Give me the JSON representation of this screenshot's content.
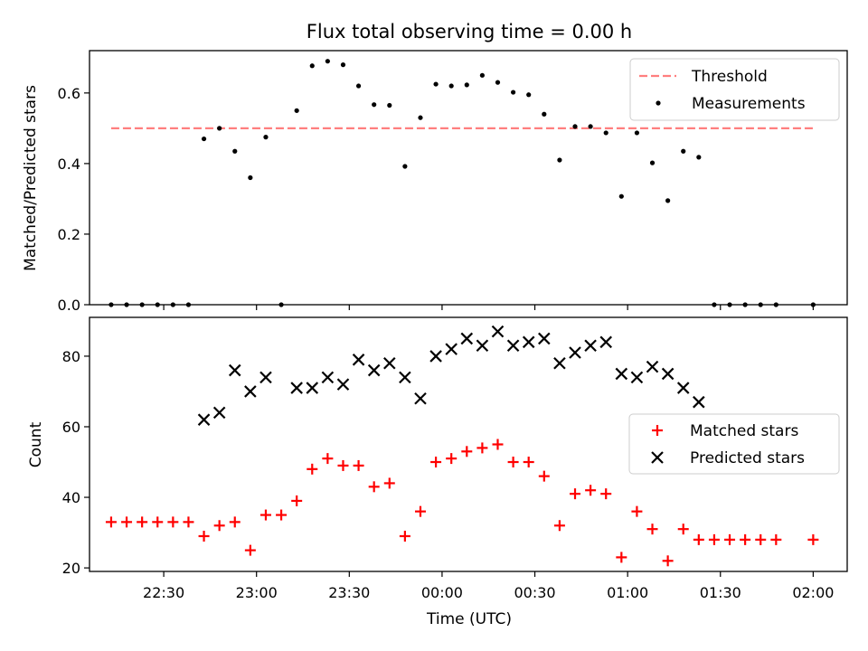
{
  "chart_data": [
    {
      "type": "scatter",
      "title": "Flux total observing time = 0.00 h",
      "xlabel": "",
      "ylabel": "Matched/Predicted stars",
      "ylim": [
        0,
        0.72
      ],
      "xlim": [
        "22:06",
        "02:11"
      ],
      "yticks": [
        "0.0",
        "0.2",
        "0.4",
        "0.6"
      ],
      "legend_position": "upper right",
      "threshold": {
        "name": "Threshold",
        "value": 0.5,
        "x_range": [
          "22:13",
          "02:00"
        ],
        "color": "#ff7f7f",
        "style": "dashed"
      },
      "series": [
        {
          "name": "Measurements",
          "marker": "dot",
          "color": "#000000",
          "x": [
            "22:13",
            "22:18",
            "22:23",
            "22:28",
            "22:33",
            "22:38",
            "22:43",
            "22:48",
            "22:53",
            "22:58",
            "23:03",
            "23:08",
            "23:13",
            "23:18",
            "23:23",
            "23:28",
            "23:33",
            "23:38",
            "23:43",
            "23:48",
            "23:53",
            "23:58",
            "00:03",
            "00:08",
            "00:13",
            "00:18",
            "00:23",
            "00:28",
            "00:33",
            "00:38",
            "00:43",
            "00:48",
            "00:53",
            "00:58",
            "01:03",
            "01:08",
            "01:13",
            "01:18",
            "01:23",
            "01:28",
            "01:33",
            "01:38",
            "01:43",
            "01:48",
            "02:00"
          ],
          "y": [
            0.0,
            0.0,
            0.0,
            0.0,
            0.0,
            0.0,
            0.47,
            0.5,
            0.435,
            0.36,
            0.475,
            0.0,
            0.55,
            0.677,
            0.69,
            0.68,
            0.62,
            0.567,
            0.565,
            0.392,
            0.53,
            0.625,
            0.62,
            0.623,
            0.65,
            0.63,
            0.602,
            0.595,
            0.54,
            0.41,
            0.505,
            0.505,
            0.487,
            0.307,
            0.487,
            0.402,
            0.295,
            0.435,
            0.418,
            0.0,
            0.0,
            0.0,
            0.0,
            0.0,
            0.0
          ]
        }
      ]
    },
    {
      "type": "scatter",
      "xlabel": "Time (UTC)",
      "ylabel": "Count",
      "ylim": [
        19,
        91
      ],
      "xticks": [
        "22:30",
        "23:00",
        "23:30",
        "00:00",
        "00:30",
        "01:00",
        "01:30",
        "02:00"
      ],
      "yticks": [
        "20",
        "40",
        "60",
        "80"
      ],
      "legend_position": "center right",
      "series": [
        {
          "name": "Matched stars",
          "marker": "plus",
          "color": "#ff0000",
          "x": [
            "22:13",
            "22:18",
            "22:23",
            "22:28",
            "22:33",
            "22:38",
            "22:43",
            "22:48",
            "22:53",
            "22:58",
            "23:03",
            "23:08",
            "23:13",
            "23:18",
            "23:23",
            "23:28",
            "23:33",
            "23:38",
            "23:43",
            "23:48",
            "23:53",
            "23:58",
            "00:03",
            "00:08",
            "00:13",
            "00:18",
            "00:23",
            "00:28",
            "00:33",
            "00:38",
            "00:43",
            "00:48",
            "00:53",
            "00:58",
            "01:03",
            "01:08",
            "01:13",
            "01:18",
            "01:23",
            "01:28",
            "01:33",
            "01:38",
            "01:43",
            "01:48",
            "02:00"
          ],
          "y": [
            33,
            33,
            33,
            33,
            33,
            33,
            29,
            32,
            33,
            25,
            35,
            35,
            39,
            48,
            51,
            49,
            49,
            43,
            44,
            29,
            36,
            50,
            51,
            53,
            54,
            55,
            50,
            50,
            46,
            32,
            41,
            42,
            41,
            23,
            36,
            31,
            22,
            31,
            28,
            28,
            28,
            28,
            28,
            28,
            28
          ]
        },
        {
          "name": "Predicted stars",
          "marker": "x",
          "color": "#000000",
          "x": [
            "22:43",
            "22:48",
            "22:53",
            "22:58",
            "23:03",
            "23:13",
            "23:18",
            "23:23",
            "23:28",
            "23:33",
            "23:38",
            "23:43",
            "23:48",
            "23:53",
            "23:58",
            "00:03",
            "00:08",
            "00:13",
            "00:18",
            "00:23",
            "00:28",
            "00:33",
            "00:38",
            "00:43",
            "00:48",
            "00:53",
            "00:58",
            "01:03",
            "01:08",
            "01:13",
            "01:18",
            "01:23"
          ],
          "y": [
            62,
            64,
            76,
            70,
            74,
            71,
            71,
            74,
            72,
            79,
            76,
            78,
            74,
            68,
            80,
            82,
            85,
            83,
            87,
            83,
            84,
            85,
            78,
            81,
            83,
            84,
            75,
            74,
            77,
            75,
            71,
            67
          ]
        }
      ]
    }
  ]
}
